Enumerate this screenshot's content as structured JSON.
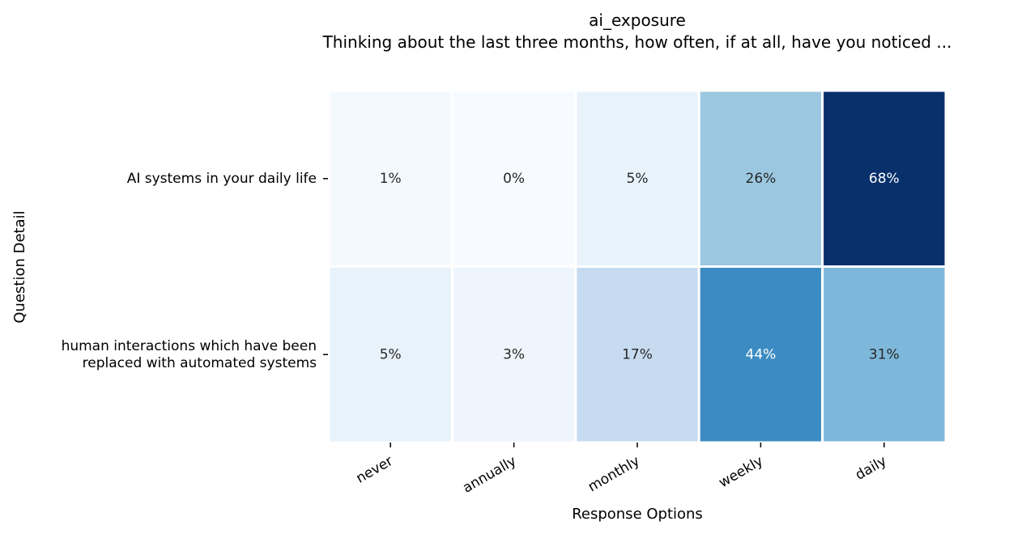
{
  "chart_data": {
    "type": "heatmap",
    "title": "ai_exposure",
    "subtitle": "Thinking about the last three months, how often, if at all, have you noticed ...",
    "xlabel": "Response Options",
    "ylabel": "Question Detail",
    "x_categories": [
      "never",
      "annually",
      "monthly",
      "weekly",
      "daily"
    ],
    "y_categories": [
      [
        "AI systems in your daily life"
      ],
      [
        "human interactions which have been",
        "replaced with automated systems"
      ]
    ],
    "values": [
      [
        1,
        0,
        5,
        26,
        68
      ],
      [
        5,
        3,
        17,
        44,
        31
      ]
    ],
    "value_format": "percent",
    "value_range": [
      0,
      68
    ],
    "colormap": "Blues",
    "colors": {
      "low": "#f7fbff",
      "high": "#08306b",
      "cell_border": "#ffffff",
      "text_dark": "#262626",
      "text_light": "#ffffff"
    },
    "grid": false,
    "legend": "none"
  }
}
